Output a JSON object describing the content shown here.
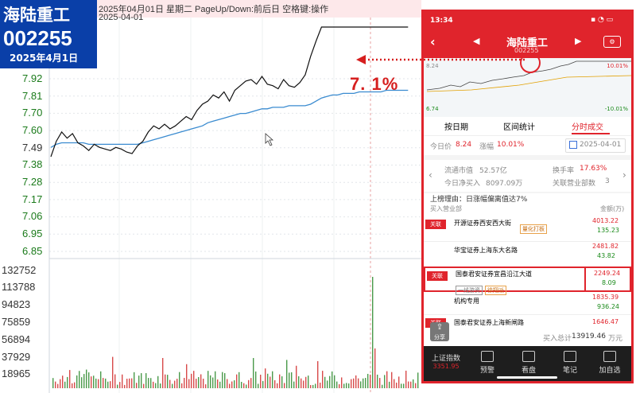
{
  "desktop": {
    "toolbar_text": "2025年04月01日  星期二  PageUp/Down:前后日  空格键:操作",
    "cursor_date": "2025-04-01",
    "badge": {
      "name": "海陆重工",
      "code": "002255",
      "date": "2025年4月1日"
    },
    "price_axis": [
      "7.92",
      "7.81",
      "7.70",
      "7.60",
      "7.49",
      "7.38",
      "7.28",
      "7.17",
      "7.06",
      "6.95",
      "6.85"
    ],
    "volume_axis": [
      "132752",
      "113788",
      "94823",
      "75859",
      "56894",
      "37929",
      "18965"
    ],
    "annotation": "7. 1%",
    "colors": {
      "price_line": "#111111",
      "avg_line": "#3a8bd0",
      "annotation": "#d61f1f",
      "axis_text": "#1a7a1a"
    },
    "chart_data": {
      "type": "line",
      "ylim": [
        6.74,
        8.24
      ],
      "series": [
        {
          "values": [
            7.4,
            7.5,
            7.56,
            7.52,
            7.55,
            7.49,
            7.47,
            7.44,
            7.48,
            7.46,
            7.45,
            7.44,
            7.46,
            7.45,
            7.43,
            7.42,
            7.47,
            7.5,
            7.56,
            7.6,
            7.58,
            7.61,
            7.58,
            7.6,
            7.63,
            7.66,
            7.64,
            7.7,
            7.74,
            7.76,
            7.8,
            7.78,
            7.82,
            7.76,
            7.83,
            7.86,
            7.89,
            7.9,
            7.87,
            7.92,
            7.87,
            7.86,
            7.84,
            7.9,
            7.86,
            7.85,
            7.88,
            7.93,
            8.05,
            8.15,
            8.24,
            8.24,
            8.24,
            8.24,
            8.24,
            8.24,
            8.24,
            8.24,
            8.24,
            8.24,
            8.24,
            8.24,
            8.24,
            8.24,
            8.24,
            8.24,
            8.24
          ]
        },
        {
          "values": [
            7.46,
            7.48,
            7.49,
            7.49,
            7.49,
            7.49,
            7.49,
            7.48,
            7.48,
            7.48,
            7.48,
            7.48,
            7.48,
            7.48,
            7.48,
            7.48,
            7.48,
            7.49,
            7.5,
            7.51,
            7.52,
            7.53,
            7.54,
            7.55,
            7.56,
            7.57,
            7.58,
            7.59,
            7.6,
            7.62,
            7.63,
            7.64,
            7.65,
            7.66,
            7.67,
            7.68,
            7.68,
            7.69,
            7.7,
            7.71,
            7.71,
            7.72,
            7.72,
            7.72,
            7.73,
            7.73,
            7.73,
            7.73,
            7.74,
            7.76,
            7.78,
            7.79,
            7.8,
            7.8,
            7.81,
            7.81,
            7.81,
            7.82,
            7.82,
            7.82,
            7.82,
            7.82,
            7.83,
            7.83,
            7.83,
            7.83,
            7.83
          ]
        }
      ]
    }
  },
  "phone": {
    "status_time": "13:34",
    "title": "海陆重工",
    "code": "002255",
    "mini": {
      "high_pct": "10.01%",
      "low": "6.74",
      "low_pct": "-10.01%",
      "high": "8.24"
    },
    "tabs": [
      "按日期",
      "区间统计",
      "分时成交"
    ],
    "today_price_label": "今日价",
    "today_price": "8.24",
    "change_label": "涨幅",
    "change": "10.01%",
    "date": "2025-04-01",
    "float_cap_label": "流通市值",
    "float_cap": "52.57亿",
    "turnover_label": "换手率",
    "turnover": "17.63%",
    "net_buy_label": "今日净买入",
    "net_buy": "8097.09万",
    "linked_label": "关联营业部数",
    "linked": "3",
    "reason": "上榜理由：日涨幅偏离值达7%",
    "buy_header": "买入营业部",
    "amount_header": "金额(万)",
    "assoc_tag": "关联",
    "rows": [
      {
        "name": "开源证券西安西大街",
        "tag": "量化打板",
        "v1": "4013.22",
        "v2": "135.23",
        "assoc": true
      },
      {
        "name": "华宝证券上海东大名路",
        "tag": "",
        "v1": "2481.82",
        "v2": "43.82",
        "assoc": false
      },
      {
        "name": "国泰君安证券宜昌沿江大道",
        "tag": "一线游资",
        "tag2": "徐翔派",
        "v1": "2249.24",
        "v2": "8.09",
        "assoc": true
      },
      {
        "name": "机构专用",
        "tag": "",
        "v1": "1835.39",
        "v2": "936.24",
        "assoc": false
      },
      {
        "name": "国泰君安证券上海新闸路",
        "tag": "",
        "v1": "1646.47",
        "v2": "",
        "assoc": true
      }
    ],
    "buy_total_label": "买入总计",
    "buy_total": "13919.46",
    "buy_total_unit": "万元",
    "share_label": "分享",
    "tabbar": {
      "index_name": "上证指数",
      "index_value": "3351.95",
      "t2": "预警",
      "t3": "看盘",
      "t4": "笔记",
      "t5": "加自选"
    }
  }
}
